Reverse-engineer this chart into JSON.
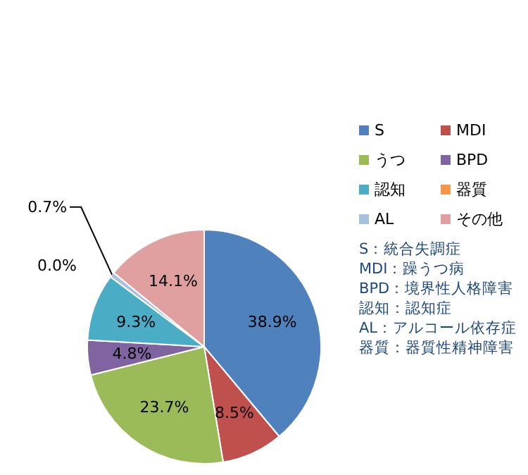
{
  "chart_data": {
    "type": "pie",
    "categories": [
      "S",
      "MDI",
      "うつ",
      "BPD",
      "認知",
      "器質",
      "AL",
      "その他"
    ],
    "values": [
      38.9,
      8.5,
      23.7,
      4.8,
      9.3,
      0.0,
      0.7,
      14.1
    ],
    "colors": [
      "#4f81bd",
      "#c0504d",
      "#9bbb59",
      "#8064a2",
      "#4bacc6",
      "#f79646",
      "#a7c0de",
      "#e0a0a0"
    ],
    "value_labels": [
      "38.9%",
      "8.5%",
      "23.7%",
      "4.8%",
      "9.3%",
      "0.0%",
      "0.7%",
      "14.1%"
    ],
    "legend": "right",
    "annotations": [
      "S：統合失調症",
      "MDI：躁うつ病",
      "BPD：境界性人格障害",
      "認知：認知症",
      "AL：アルコール依存症",
      "器質：器質性精神障害"
    ]
  }
}
